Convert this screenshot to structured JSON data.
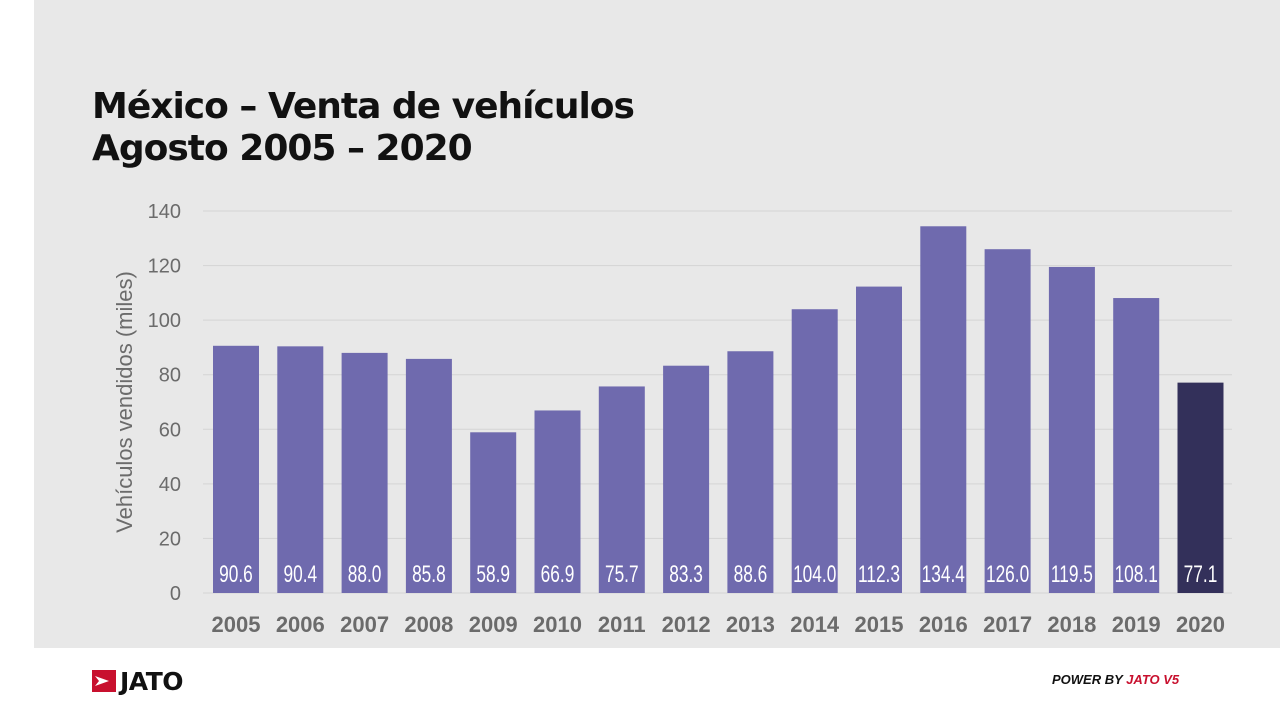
{
  "header": {
    "title_line1": "México – Venta de vehículos",
    "title_line2": "Agosto 2005 – 2020"
  },
  "footer": {
    "logo_text": "JATO",
    "power_prefix": "POWER BY ",
    "power_brand": "JATO V5"
  },
  "colors": {
    "bar": "#6f6aae",
    "bar_highlight": "#33305a",
    "background": "#e8e8e8",
    "grid": "#d4d4d4",
    "axis_text": "#6b6b6b",
    "brand_red": "#c8102e"
  },
  "chart_data": {
    "type": "bar",
    "title": "México – Venta de vehículos Agosto 2005 – 2020",
    "xlabel": "",
    "ylabel": "Vehículos vendidos (miles)",
    "ylim": [
      0,
      140
    ],
    "yticks": [
      0,
      20,
      40,
      60,
      80,
      100,
      120,
      140
    ],
    "grid": true,
    "categories": [
      "2005",
      "2006",
      "2007",
      "2008",
      "2009",
      "2010",
      "2011",
      "2012",
      "2013",
      "2014",
      "2015",
      "2016",
      "2017",
      "2018",
      "2019",
      "2020"
    ],
    "values": [
      90.6,
      90.4,
      88.0,
      85.8,
      58.9,
      66.9,
      75.7,
      83.3,
      88.6,
      104.0,
      112.3,
      134.4,
      126.0,
      119.5,
      108.1,
      77.1
    ],
    "labels": [
      "90.6",
      "90.4",
      "88.0",
      "85.8",
      "58.9",
      "66.9",
      "75.7",
      "83.3",
      "88.6",
      "104.0",
      "112.3",
      "134.4",
      "126.0",
      "119.5",
      "108.1",
      "77.1"
    ],
    "highlight_category": "2020"
  }
}
